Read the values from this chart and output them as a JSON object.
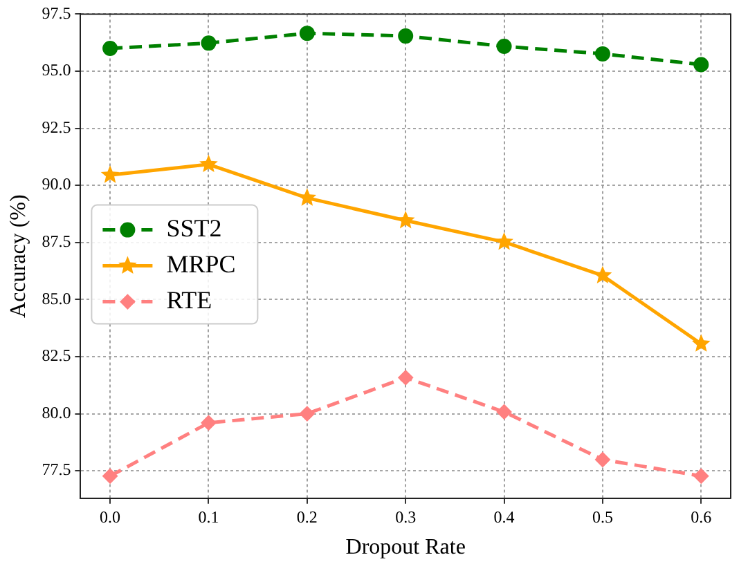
{
  "chart_data": {
    "type": "line",
    "xlabel": "Dropout Rate",
    "ylabel": "Accuracy (%)",
    "x": [
      0.0,
      0.1,
      0.2,
      0.3,
      0.4,
      0.5,
      0.6
    ],
    "xlim": [
      -0.03,
      0.63
    ],
    "xticks": [
      {
        "value": 0,
        "label": "0.0"
      },
      0.1,
      0.2,
      0.3,
      0.4,
      0.5,
      0.6
    ],
    "ylim": [
      76.3,
      97.5
    ],
    "yticks": [
      {
        "value": 77.5,
        "label": "77.5"
      },
      {
        "value": 80,
        "label": "80.0"
      },
      {
        "value": 82.5,
        "label": "82.5"
      },
      {
        "value": 85,
        "label": "85.0"
      },
      {
        "value": 87.5,
        "label": "87.5"
      },
      {
        "value": 90,
        "label": "90.0"
      },
      {
        "value": 92.5,
        "label": "92.5"
      },
      {
        "value": 95,
        "label": "95.0"
      },
      {
        "value": 97.5,
        "label": "97.5"
      }
    ],
    "grid": true,
    "legend": "left",
    "series": [
      {
        "name": "SST2",
        "color": "#008000",
        "marker": "circle",
        "line_style": "dashed",
        "values": [
          96.0,
          96.23,
          96.66,
          96.54,
          96.09,
          95.76,
          95.29
        ]
      },
      {
        "name": "MRPC",
        "color": "#ffa500",
        "marker": "star",
        "line_style": "solid",
        "values": [
          90.45,
          90.92,
          89.45,
          88.46,
          87.52,
          86.05,
          83.06
        ]
      },
      {
        "name": "RTE",
        "color": "#ff8080",
        "marker": "diamond",
        "line_style": "dashed",
        "values": [
          77.27,
          79.6,
          80.0,
          81.58,
          80.08,
          77.99,
          77.27
        ]
      }
    ]
  }
}
